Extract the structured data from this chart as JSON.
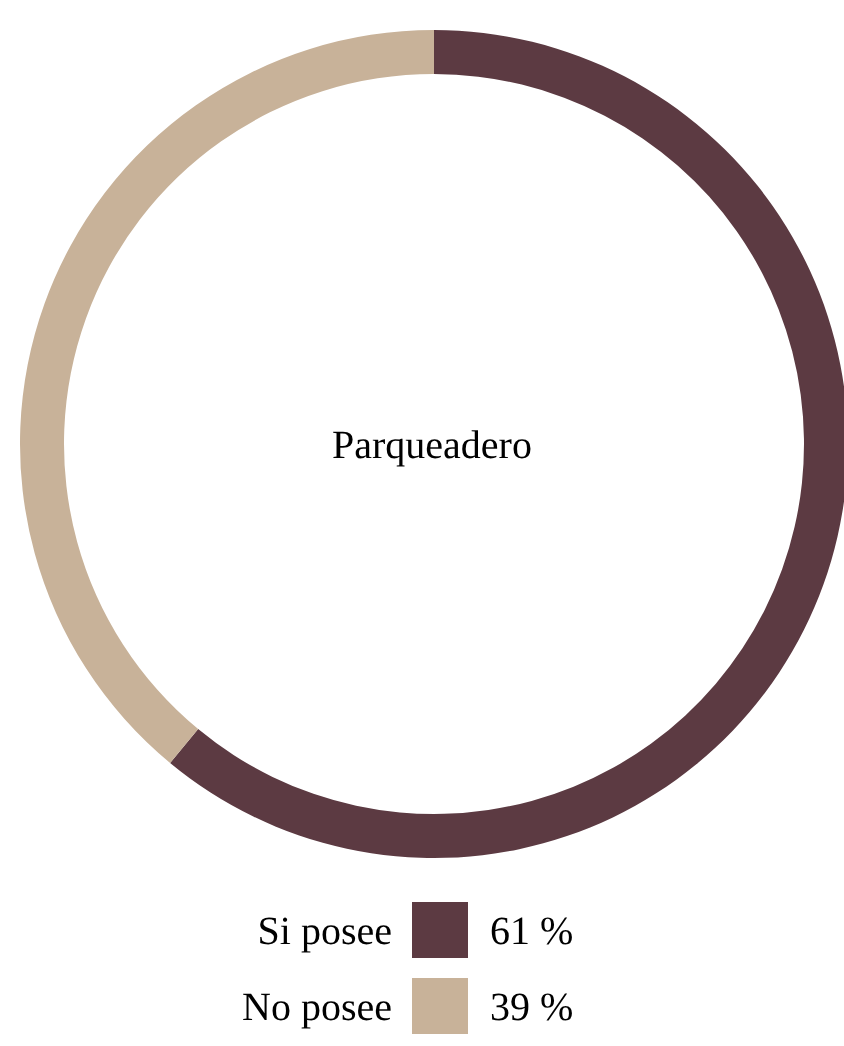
{
  "chart_data": {
    "type": "donut",
    "title": "Parqueadero",
    "categories": [
      "Si posee",
      "No posee"
    ],
    "values": [
      61,
      39
    ],
    "colors": [
      "#5c3a42",
      "#c8b299"
    ],
    "value_labels": [
      "61 %",
      "39 %"
    ],
    "legend": "bottom"
  }
}
